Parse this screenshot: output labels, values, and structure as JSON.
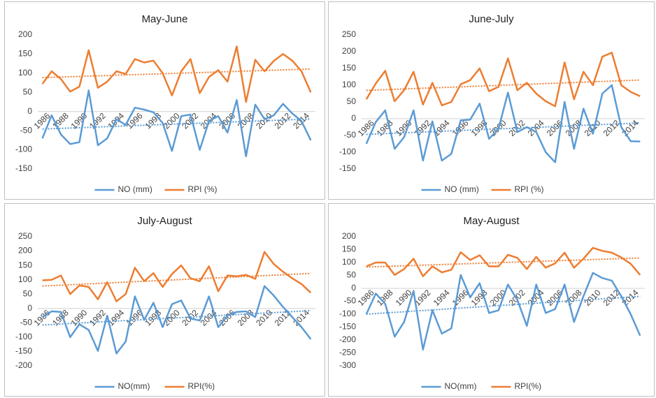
{
  "chart_data": [
    {
      "type": "line",
      "title": "May-June",
      "categories": [
        "1986",
        null,
        "1988",
        null,
        "1990",
        null,
        "1992",
        null,
        "1994",
        null,
        "1996",
        null,
        "1998",
        null,
        "2000",
        null,
        "2002",
        null,
        "2004",
        null,
        "2006",
        null,
        "2008",
        null,
        "2010",
        null,
        "2012",
        null,
        "2014",
        null
      ],
      "series": [
        {
          "name": "NO (mm)",
          "color": "#5b9bd5",
          "values": [
            -70,
            -10,
            -60,
            -85,
            -80,
            55,
            -88,
            -70,
            -20,
            -35,
            10,
            5,
            -2,
            -30,
            -103,
            -12,
            -8,
            -100,
            -25,
            -12,
            -55,
            30,
            -117,
            18,
            -20,
            -10,
            20,
            -5,
            -25,
            -75
          ]
        },
        {
          "name": "RPI (%)",
          "color": "#ed7d31",
          "values": [
            72,
            105,
            85,
            52,
            65,
            160,
            62,
            78,
            105,
            98,
            137,
            128,
            133,
            100,
            42,
            105,
            137,
            48,
            90,
            108,
            78,
            170,
            25,
            135,
            105,
            132,
            150,
            133,
            105,
            50
          ]
        }
      ],
      "ylim": [
        -150,
        200
      ],
      "yticks": [
        -150,
        -100,
        -50,
        0,
        50,
        100,
        150,
        200
      ],
      "trendline": true,
      "legend": "bottom"
    },
    {
      "type": "line",
      "title": "June-July",
      "categories": [
        "1986",
        null,
        "1988",
        null,
        "1990",
        null,
        "1992",
        null,
        "1994",
        null,
        "1996",
        null,
        "1998",
        null,
        "2000",
        null,
        "2002",
        null,
        "2004",
        null,
        "2006",
        null,
        "2008",
        null,
        "2010",
        null,
        "2012",
        null,
        "2014",
        null
      ],
      "series": [
        {
          "name": "NO (mm)",
          "color": "#5b9bd5",
          "values": [
            -75,
            -10,
            25,
            -90,
            -55,
            25,
            -125,
            -8,
            -125,
            -105,
            -5,
            -3,
            45,
            -60,
            -30,
            78,
            -40,
            -25,
            -40,
            -100,
            -130,
            50,
            -90,
            30,
            -45,
            75,
            100,
            -25,
            -67,
            -68
          ]
        },
        {
          "name": "RPI (%)",
          "color": "#ed7d31",
          "values": [
            58,
            105,
            143,
            52,
            85,
            140,
            42,
            107,
            40,
            50,
            103,
            115,
            150,
            82,
            95,
            180,
            85,
            107,
            75,
            52,
            37,
            168,
            58,
            140,
            100,
            185,
            197,
            100,
            80,
            67
          ]
        }
      ],
      "ylim": [
        -150,
        250
      ],
      "yticks": [
        -150,
        -100,
        -50,
        0,
        50,
        100,
        150,
        200,
        250
      ],
      "trendline": true,
      "legend": "bottom"
    },
    {
      "type": "line",
      "title": "July-August",
      "categories": [
        "1986",
        null,
        "1988",
        null,
        "1990",
        null,
        "1992",
        null,
        "1994",
        null,
        "1996",
        null,
        "1998",
        null,
        "2000",
        null,
        "2002",
        null,
        "2004",
        null,
        "2006",
        null,
        "2008",
        null,
        "2010",
        null,
        "2012",
        null,
        "2014",
        null
      ],
      "series": [
        {
          "name": "NO(mm)",
          "color": "#5b9bd5",
          "values": [
            -30,
            -10,
            -12,
            -100,
            -55,
            -75,
            -148,
            -25,
            -157,
            -115,
            42,
            -40,
            20,
            -65,
            15,
            28,
            -35,
            -42,
            42,
            -65,
            -25,
            -12,
            -10,
            -30,
            78,
            45,
            5,
            -30,
            -65,
            -107
          ]
        },
        {
          "name": "RPI(%)",
          "color": "#ed7d31",
          "values": [
            98,
            100,
            115,
            50,
            80,
            75,
            32,
            92,
            25,
            50,
            142,
            95,
            123,
            75,
            120,
            150,
            105,
            95,
            147,
            60,
            115,
            112,
            117,
            103,
            197,
            155,
            128,
            105,
            85,
            55
          ]
        }
      ],
      "ylim": [
        -200,
        250
      ],
      "yticks": [
        -200,
        -150,
        -100,
        -50,
        0,
        50,
        100,
        150,
        200,
        250
      ],
      "trendline": true,
      "legend": "bottom"
    },
    {
      "type": "line",
      "title": "May-August",
      "categories": [
        "1986",
        null,
        "1988",
        null,
        "1990",
        null,
        "1992",
        null,
        "1994",
        null,
        "1996",
        null,
        "1998",
        null,
        "2000",
        null,
        "2002",
        null,
        "2004",
        null,
        "2006",
        null,
        "2008",
        null,
        "2010",
        null,
        "2012",
        null,
        "2014",
        null
      ],
      "series": [
        {
          "name": "NO(mm)",
          "color": "#5b9bd5",
          "values": [
            -100,
            -20,
            -60,
            -187,
            -130,
            -10,
            -237,
            -85,
            -175,
            -155,
            52,
            -35,
            20,
            -95,
            -85,
            15,
            -45,
            -145,
            15,
            -95,
            -80,
            15,
            -130,
            -30,
            60,
            40,
            30,
            -30,
            -100,
            -183
          ]
        },
        {
          "name": "RPI(%)",
          "color": "#ed7d31",
          "values": [
            85,
            100,
            100,
            52,
            75,
            115,
            47,
            85,
            62,
            72,
            140,
            110,
            128,
            85,
            85,
            130,
            118,
            75,
            122,
            80,
            97,
            138,
            80,
            115,
            157,
            145,
            138,
            120,
            95,
            52
          ]
        }
      ],
      "ylim": [
        -300,
        200
      ],
      "yticks": [
        -300,
        -250,
        -200,
        -150,
        -100,
        -50,
        0,
        50,
        100,
        150,
        200
      ],
      "trendline": true,
      "legend": "bottom"
    }
  ]
}
